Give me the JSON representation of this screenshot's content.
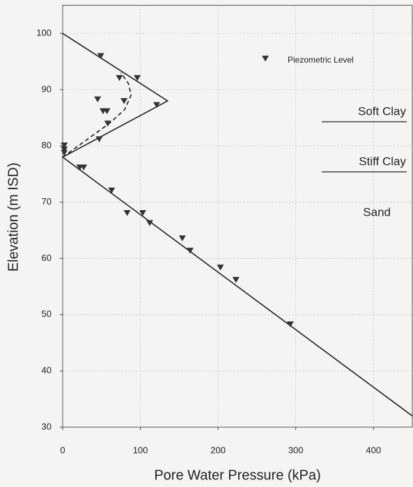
{
  "chart_data": {
    "type": "scatter",
    "x_label": "Pore Water Pressure (kPa)",
    "y_label": "Elevation (m ISD)",
    "xlim": [
      0,
      450
    ],
    "ylim": [
      30,
      105
    ],
    "xticks": [
      0,
      100,
      200,
      300,
      400
    ],
    "yticks": [
      30,
      40,
      50,
      60,
      70,
      80,
      90,
      100
    ],
    "grid": true,
    "legend": "top-right",
    "series": [
      {
        "name": "Piezometric Level",
        "color": "#333333",
        "marker": "triangle",
        "x": [
          49,
          73,
          96,
          45,
          79,
          121,
          52,
          57,
          58,
          47,
          2,
          2,
          2,
          22,
          27,
          63,
          83,
          103,
          112,
          154,
          164,
          203,
          223,
          293
        ],
        "values": [
          96,
          92.1,
          92.1,
          88.3,
          88,
          87.3,
          86.2,
          86.2,
          84,
          81.2,
          80.1,
          79.4,
          78.8,
          76.2,
          76.2,
          72.1,
          68.1,
          68.1,
          66.3,
          63.6,
          61.4,
          58.4,
          56.2,
          48.3
        ]
      }
    ],
    "lines": [
      {
        "style": "solid",
        "color": "#222222",
        "x": [
          0,
          135,
          0,
          450
        ],
        "values": [
          100,
          88,
          78,
          32
        ]
      },
      {
        "style": "dashed",
        "color": "#222222",
        "x": [
          0,
          30,
          60,
          80,
          88,
          85,
          75
        ],
        "values": [
          78,
          81,
          84,
          86.5,
          89,
          91,
          93
        ]
      }
    ],
    "annotations": [
      "Soft Clay",
      "Stiff Clay",
      "Sand"
    ]
  }
}
